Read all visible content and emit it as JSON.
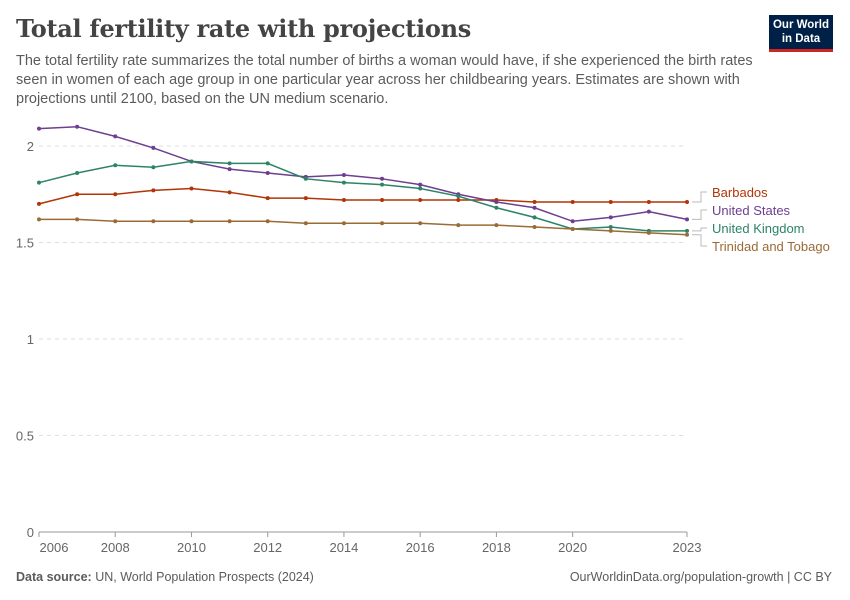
{
  "header": {
    "title": "Total fertility rate with projections",
    "subtitle": "The total fertility rate summarizes the total number of births a woman would have, if she experienced the birth rates seen in women of each age group in one particular year across her childbearing years. Estimates are shown with projections until 2100, based on the UN medium scenario.",
    "logo_line1": "Our World",
    "logo_line2": "in Data"
  },
  "footer": {
    "source_label": "Data source:",
    "source": "UN, World Population Prospects (2024)",
    "url": "OurWorldinData.org/population-growth | CC BY"
  },
  "chart_data": {
    "type": "line",
    "title": "Total fertility rate with projections",
    "xlim": [
      2006,
      2023
    ],
    "ylim": [
      0,
      2
    ],
    "grid": true,
    "legend_placement": "right",
    "x_ticks": [
      2006,
      2008,
      2010,
      2012,
      2014,
      2016,
      2018,
      2020,
      2023
    ],
    "y_ticks": [
      0,
      0.5,
      1,
      1.5,
      2
    ],
    "x": [
      2006,
      2007,
      2008,
      2009,
      2010,
      2011,
      2012,
      2013,
      2014,
      2015,
      2016,
      2017,
      2018,
      2019,
      2020,
      2021,
      2022,
      2023
    ],
    "series": [
      {
        "name": "Barbados",
        "color": "#b13507",
        "values": [
          1.7,
          1.75,
          1.75,
          1.77,
          1.78,
          1.76,
          1.73,
          1.73,
          1.72,
          1.72,
          1.72,
          1.72,
          1.72,
          1.71,
          1.71,
          1.71,
          1.71,
          1.71
        ]
      },
      {
        "name": "United States",
        "color": "#6d3e91",
        "values": [
          2.09,
          2.1,
          2.05,
          1.99,
          1.92,
          1.88,
          1.86,
          1.84,
          1.85,
          1.83,
          1.8,
          1.75,
          1.71,
          1.68,
          1.61,
          1.63,
          1.66,
          1.62
        ]
      },
      {
        "name": "United Kingdom",
        "color": "#2c8465",
        "values": [
          1.81,
          1.86,
          1.9,
          1.89,
          1.92,
          1.91,
          1.91,
          1.83,
          1.81,
          1.8,
          1.78,
          1.74,
          1.68,
          1.63,
          1.57,
          1.58,
          1.56,
          1.56
        ]
      },
      {
        "name": "Trinidad and Tobago",
        "color": "#9a6b36",
        "values": [
          1.62,
          1.62,
          1.61,
          1.61,
          1.61,
          1.61,
          1.61,
          1.6,
          1.6,
          1.6,
          1.6,
          1.59,
          1.59,
          1.58,
          1.57,
          1.56,
          1.55,
          1.54
        ]
      }
    ]
  }
}
